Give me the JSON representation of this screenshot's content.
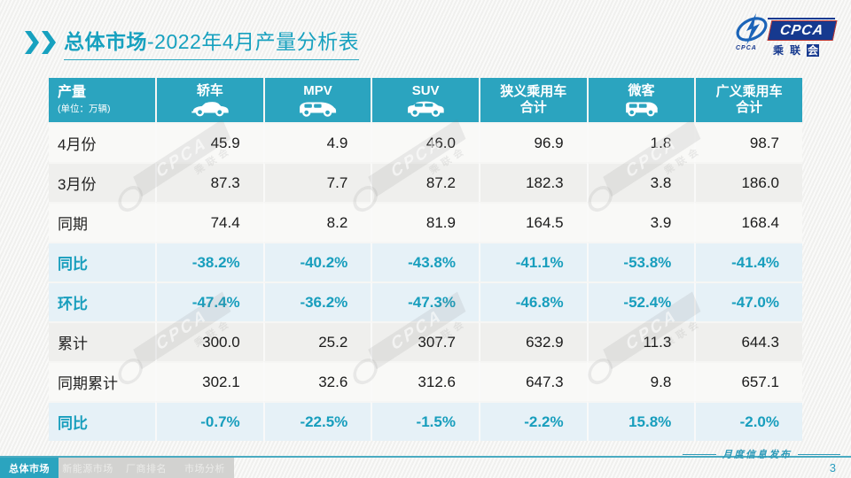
{
  "page": {
    "title_bold": "总体市场",
    "title_rest": "-2022年4月产量分析表",
    "page_number": "3",
    "footer_publish_label": "月度信息发布"
  },
  "logo": {
    "brand": "CPCA",
    "emblem_caption": "CPCA",
    "sub_pre": "乘联",
    "sub_last": "会"
  },
  "watermark_text": {
    "band": "CPCA",
    "sub": "乘联会"
  },
  "table": {
    "header": {
      "label": "产量",
      "unit": "(单位：万辆)",
      "columns": [
        {
          "label": "轿车",
          "icon": "sedan-icon"
        },
        {
          "label": "MPV",
          "icon": "mpv-icon"
        },
        {
          "label": "SUV",
          "icon": "suv-icon"
        },
        {
          "label": "狭义乘用车",
          "label2": "合计"
        },
        {
          "label": "微客",
          "icon": "microvan-icon"
        },
        {
          "label": "广义乘用车",
          "label2": "合计"
        }
      ]
    },
    "rows": [
      {
        "label": "4月份",
        "type": "normal",
        "values": [
          "45.9",
          "4.9",
          "46.0",
          "96.9",
          "1.8",
          "98.7"
        ]
      },
      {
        "label": "3月份",
        "type": "normal",
        "values": [
          "87.3",
          "7.7",
          "87.2",
          "182.3",
          "3.8",
          "186.0"
        ]
      },
      {
        "label": "同期",
        "type": "normal",
        "values": [
          "74.4",
          "8.2",
          "81.9",
          "164.5",
          "3.9",
          "168.4"
        ]
      },
      {
        "label": "同比",
        "type": "percent",
        "values": [
          "-38.2%",
          "-40.2%",
          "-43.8%",
          "-41.1%",
          "-53.8%",
          "-41.4%"
        ]
      },
      {
        "label": "环比",
        "type": "percent",
        "values": [
          "-47.4%",
          "-36.2%",
          "-47.3%",
          "-46.8%",
          "-52.4%",
          "-47.0%"
        ]
      },
      {
        "label": "累计",
        "type": "normal",
        "values": [
          "300.0",
          "25.2",
          "307.7",
          "632.9",
          "11.3",
          "644.3"
        ]
      },
      {
        "label": "同期累计",
        "type": "normal",
        "values": [
          "302.1",
          "32.6",
          "312.6",
          "647.3",
          "9.8",
          "657.1"
        ]
      },
      {
        "label": "同比",
        "type": "percent",
        "values": [
          "-0.7%",
          "-22.5%",
          "-1.5%",
          "-2.2%",
          "15.8%",
          "-2.0%"
        ]
      }
    ]
  },
  "tabs": [
    {
      "label": "总体市场",
      "active": true
    },
    {
      "label": "新能源市场",
      "active": false
    },
    {
      "label": "厂商排名",
      "active": false
    },
    {
      "label": "市场分析",
      "active": false
    }
  ],
  "colors": {
    "accent_teal": "#2ba4bf",
    "title_teal": "#17a1bf",
    "percent_text": "#189ebd",
    "logo_blue": "#16398f",
    "percent_row_bg": "#e6f1f7"
  }
}
